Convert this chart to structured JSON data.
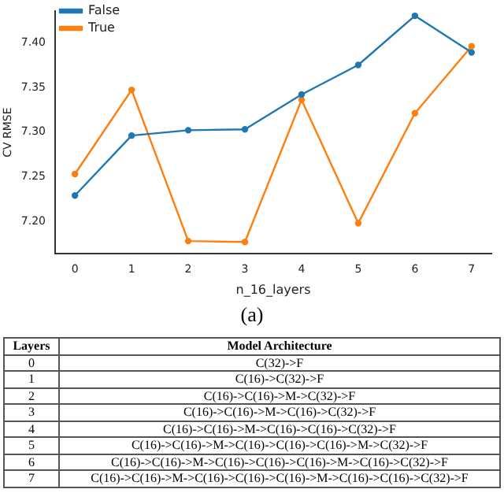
{
  "chart_data": {
    "type": "line",
    "xlabel": "n_16_layers",
    "ylabel": "CV RMSE",
    "annotations": [
      "(a)",
      "Layers",
      "Model Architecture",
      "0",
      "C(32)->F",
      "1",
      "C(16)->C(32)->F",
      "2",
      "C(16)->C(16)->M->C(32)->F",
      "3",
      "C(16)->C(16)->M->C(16)->C(32)->F",
      "4",
      "C(16)->C(16)->M->C(16)->C(16)->C(32)->F",
      "5",
      "C(16)->C(16)->M->C(16)->C(16)->C(16)->M->C(32)->F",
      "6",
      "C(16)->C(16)->M->C(16)->C(16)->C(16)->M->C(16)->C(32)->F",
      "7",
      "C(16)->C(16)->M->C(16)->C(16)->C(16)->M->C(16)->C(16)->C(32)->F"
    ],
    "x": [
      0,
      1,
      2,
      3,
      4,
      5,
      6,
      7
    ],
    "series": [
      {
        "name": "False",
        "color": "#1f77b4",
        "values": [
          7.229,
          7.296,
          7.302,
          7.303,
          7.342,
          7.375,
          7.43,
          7.389
        ]
      },
      {
        "name": "True",
        "color": "#ff7f0e",
        "values": [
          7.253,
          7.347,
          7.178,
          7.177,
          7.336,
          7.198,
          7.321,
          7.396
        ]
      }
    ],
    "xlim": [
      -0.35,
      7.35
    ],
    "xticks": [
      0,
      1,
      2,
      3,
      4,
      5,
      6,
      7
    ],
    "ylim": [
      7.164,
      7.435
    ],
    "yticks": [
      {
        "value": 7.2,
        "label": "7.20"
      },
      {
        "value": 7.25,
        "label": "7.25"
      },
      {
        "value": 7.3,
        "label": "7.30"
      },
      {
        "value": 7.35,
        "label": "7.35"
      },
      {
        "value": 7.4,
        "label": "7.40"
      }
    ],
    "grid": false,
    "legend": "top left",
    "marker": "circle",
    "line_style": "solid"
  }
}
